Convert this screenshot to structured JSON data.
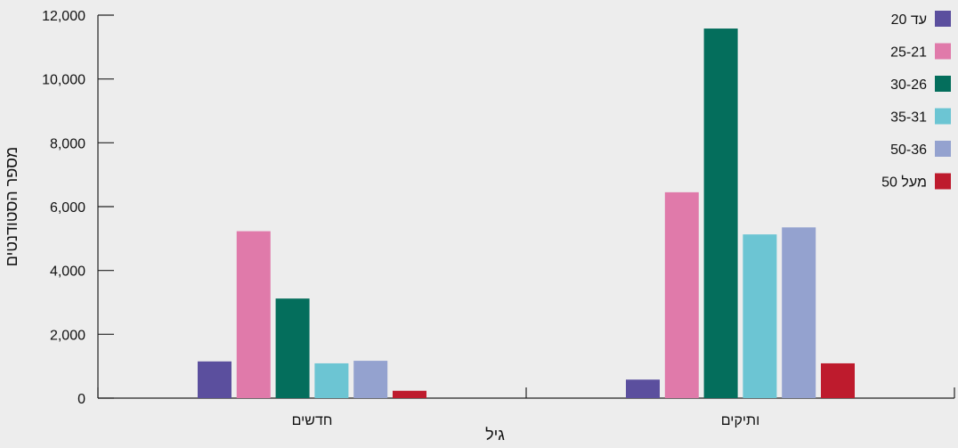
{
  "chart_data": {
    "type": "bar",
    "categories": [
      "חדשים",
      "ותיקים"
    ],
    "xlabel": "גיל",
    "ylabel": "מספר הסטודנטים",
    "ylim": [
      0,
      12000
    ],
    "yticks": [
      0,
      2000,
      4000,
      6000,
      8000,
      10000,
      12000
    ],
    "ytick_labels": [
      "0",
      "2,000",
      "4,000",
      "6,000",
      "8,000",
      "10,000",
      "12,000"
    ],
    "grid": false,
    "legend_position": "top-right",
    "series": [
      {
        "name": "עד 20",
        "color": "#5b4f9e",
        "values": [
          1150,
          580
        ]
      },
      {
        "name": "25-21",
        "color": "#e07aaa",
        "values": [
          5230,
          6450
        ]
      },
      {
        "name": "30-26",
        "color": "#046e5c",
        "values": [
          3120,
          11580
        ]
      },
      {
        "name": "35-31",
        "color": "#6cc5d3",
        "values": [
          1090,
          5130
        ]
      },
      {
        "name": "50-36",
        "color": "#94a2cf",
        "values": [
          1170,
          5350
        ]
      },
      {
        "name": "מעל 50",
        "color": "#be1b2d",
        "values": [
          230,
          1090
        ]
      }
    ]
  }
}
